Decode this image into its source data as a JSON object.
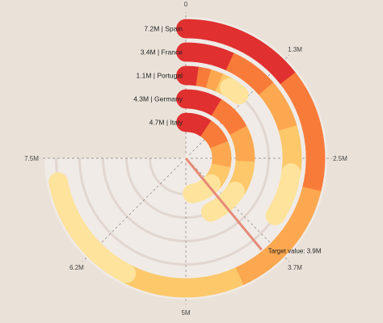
{
  "colors": {
    "background": "#eae2d9",
    "plot_background": "#f0ebe6",
    "target_line": "#e58b78",
    "band_palette": [
      "#fde39b",
      "#fcc86a",
      "#fca850",
      "#f97b3a",
      "#e03030"
    ]
  },
  "chart_data": {
    "type": "radial-bar",
    "title": "",
    "angle_axis": {
      "min": 0,
      "max": 7.5,
      "unit": "M",
      "tick_labels": [
        "0",
        "1.3M",
        "2.5M",
        "3.7M",
        "5M",
        "6.2M",
        "7.5M"
      ],
      "tick_values": [
        0,
        1.25,
        2.5,
        3.75,
        5.0,
        6.25,
        7.5
      ]
    },
    "categories": [
      {
        "name": "Spain",
        "value": 7.2,
        "label": "7.2M | Spain"
      },
      {
        "name": "France",
        "value": 3.4,
        "label": "3.4M | France"
      },
      {
        "name": "Portugal",
        "value": 1.1,
        "label": "1.1M | Portugal"
      },
      {
        "name": "Germany",
        "value": 4.3,
        "label": "4.3M | Germany"
      },
      {
        "name": "Italy",
        "value": 4.7,
        "label": "4.7M | Italy"
      }
    ],
    "target": {
      "value": 3.9,
      "label": "Target value: 3.9M"
    },
    "grid": true
  }
}
